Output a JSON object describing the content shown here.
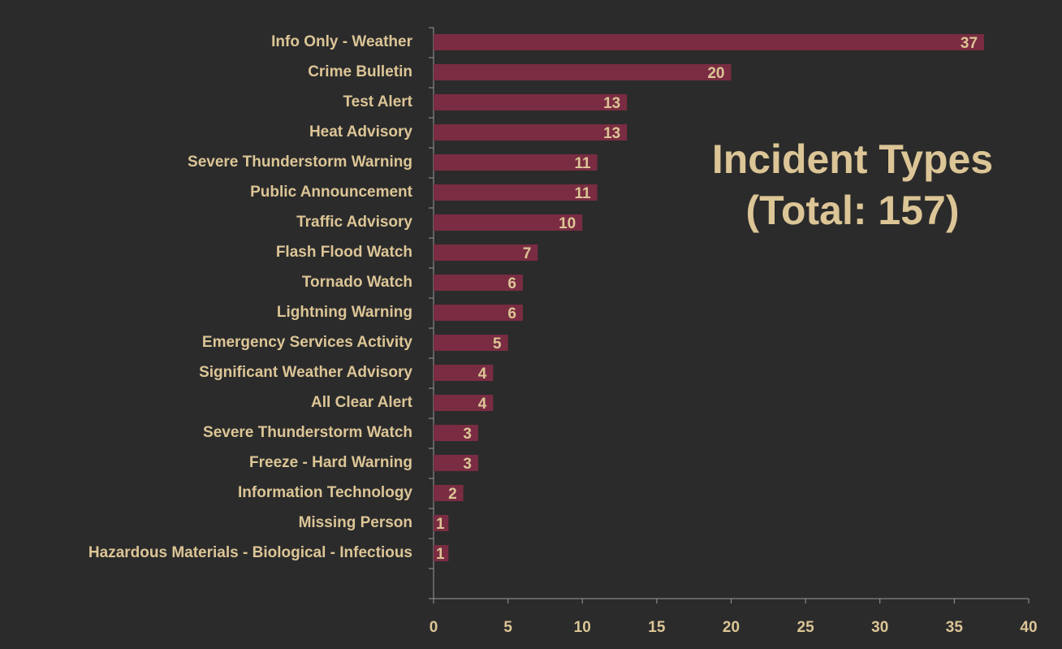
{
  "chart_data": {
    "type": "barh",
    "title": "Incident Types",
    "subtitle": "(Total: 157)",
    "categories": [
      "Info Only - Weather",
      "Crime Bulletin",
      "Test Alert",
      "Heat Advisory",
      "Severe Thunderstorm Warning",
      "Public Announcement",
      "Traffic Advisory",
      "Flash Flood Watch",
      "Tornado Watch",
      "Lightning Warning",
      "Emergency Services Activity",
      "Significant Weather Advisory",
      "All Clear Alert",
      "Severe Thunderstorm Watch",
      "Freeze - Hard Warning",
      "Information Technology ",
      "Missing Person",
      "Hazardous Materials - Biological - Infectious"
    ],
    "values": [
      37,
      20,
      13,
      13,
      11,
      11,
      10,
      7,
      6,
      6,
      5,
      4,
      4,
      3,
      3,
      2,
      1,
      1
    ],
    "color": "#7a2c42",
    "xlim": [
      0,
      40
    ],
    "xticks": [
      0,
      5,
      10,
      15,
      20,
      25,
      30,
      35,
      40
    ]
  }
}
